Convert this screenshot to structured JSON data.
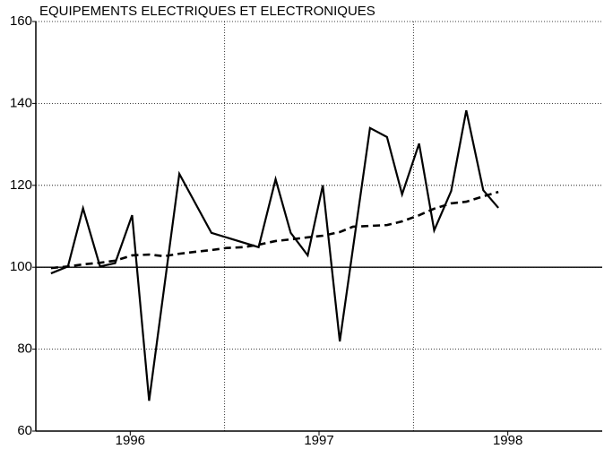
{
  "chart_data": {
    "type": "line",
    "title": "EQUIPEMENTS ELECTRIQUES ET ELECTRONIQUES",
    "series": [
      {
        "name": "solid",
        "color": "#000000",
        "dash": false,
        "x": [
          1995.58,
          1995.67,
          1995.75,
          1995.84,
          1995.92,
          1996.01,
          1996.1,
          1996.26,
          1996.43,
          1996.68,
          1996.77,
          1996.85,
          1996.94,
          1997.02,
          1997.11,
          1997.27,
          1997.36,
          1997.44,
          1997.53,
          1997.61,
          1997.7,
          1997.78,
          1997.87,
          1997.95
        ],
        "values": [
          98.5,
          100.2,
          114.4,
          100.2,
          101,
          112.7,
          67.4,
          122.8,
          108.4,
          104.9,
          121.5,
          108.4,
          102.9,
          120,
          81.9,
          134,
          131.8,
          117.8,
          130.2,
          109,
          118.6,
          138.3,
          118.8,
          114.5
        ]
      },
      {
        "name": "dashed",
        "color": "#000000",
        "dash": true,
        "x": [
          1995.58,
          1995.67,
          1995.75,
          1995.84,
          1995.92,
          1996.01,
          1996.1,
          1996.18,
          1996.26,
          1996.35,
          1996.43,
          1996.51,
          1996.6,
          1996.68,
          1996.77,
          1996.85,
          1996.94,
          1997.02,
          1997.11,
          1997.18,
          1997.27,
          1997.36,
          1997.44,
          1997.53,
          1997.61,
          1997.7,
          1997.78,
          1997.87,
          1997.95
        ],
        "values": [
          99.8,
          100.2,
          100.7,
          101.1,
          101.6,
          102.9,
          103.1,
          102.7,
          103.3,
          103.8,
          104.2,
          104.7,
          104.9,
          105.5,
          106.4,
          106.8,
          107.3,
          107.7,
          108.6,
          109.9,
          110.1,
          110.3,
          111.2,
          112.7,
          114.3,
          115.6,
          116,
          117.3,
          118.4
        ]
      }
    ],
    "xlim": [
      1995.5,
      1998.5
    ],
    "xticks": [
      1996,
      1997,
      1998
    ],
    "xgrid": [
      1996.5,
      1997.5
    ],
    "ylim": [
      60,
      160
    ],
    "yticks": [
      60,
      80,
      100,
      120,
      140,
      160
    ],
    "reference_line": 100,
    "grid": true
  }
}
